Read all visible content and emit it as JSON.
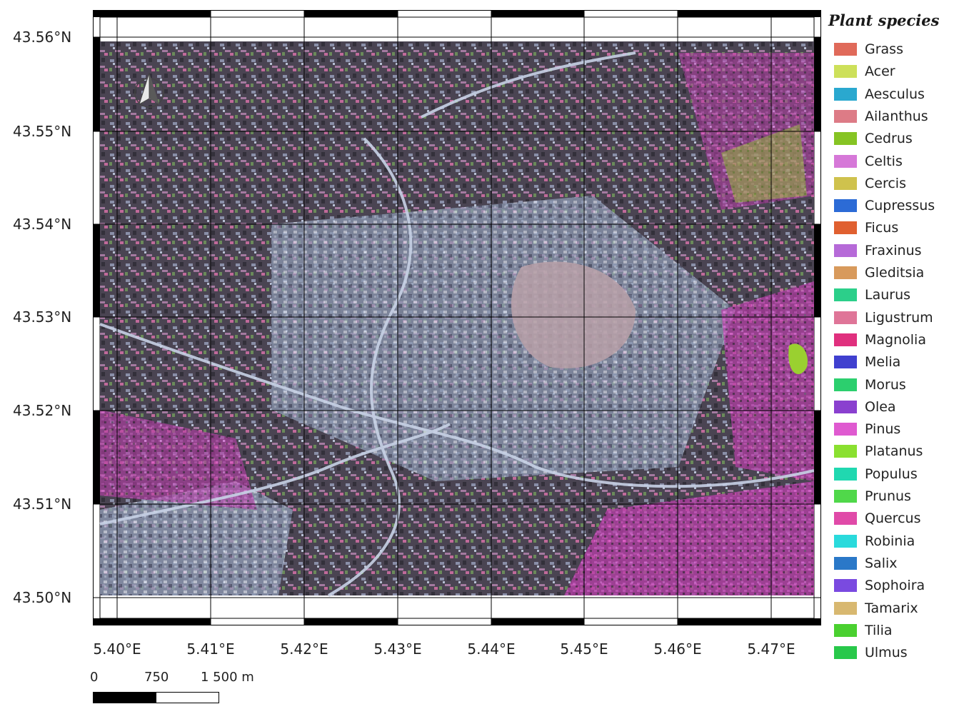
{
  "map": {
    "latitude_labels": [
      "43.56°N",
      "43.55°N",
      "43.54°N",
      "43.53°N",
      "43.52°N",
      "43.51°N",
      "43.50°N"
    ],
    "longitude_labels": [
      "5.40°E",
      "5.41°E",
      "5.42°E",
      "5.43°E",
      "5.44°E",
      "5.45°E",
      "5.46°E",
      "5.47°E"
    ]
  },
  "legend": {
    "title": "Plant species",
    "items": [
      {
        "label": "Grass",
        "color": "#e06a5a"
      },
      {
        "label": "Acer",
        "color": "#cde05a"
      },
      {
        "label": "Aesculus",
        "color": "#2aa8cf"
      },
      {
        "label": "Ailanthus",
        "color": "#dd7b86"
      },
      {
        "label": "Cedrus",
        "color": "#86c424"
      },
      {
        "label": "Celtis",
        "color": "#d678d8"
      },
      {
        "label": "Cercis",
        "color": "#cfc24d"
      },
      {
        "label": "Cupressus",
        "color": "#2c6bd6"
      },
      {
        "label": "Ficus",
        "color": "#e06030"
      },
      {
        "label": "Fraxinus",
        "color": "#b66ad8"
      },
      {
        "label": "Gleditsia",
        "color": "#d89a5c"
      },
      {
        "label": "Laurus",
        "color": "#2ccf8a"
      },
      {
        "label": "Ligustrum",
        "color": "#df7598"
      },
      {
        "label": "Magnolia",
        "color": "#e0307e"
      },
      {
        "label": "Melia",
        "color": "#4040cf"
      },
      {
        "label": "Morus",
        "color": "#2ccf6e"
      },
      {
        "label": "Olea",
        "color": "#8a40cf"
      },
      {
        "label": "Pinus",
        "color": "#df5ad0"
      },
      {
        "label": "Platanus",
        "color": "#8ae030"
      },
      {
        "label": "Populus",
        "color": "#20d8b0"
      },
      {
        "label": "Prunus",
        "color": "#50d84a"
      },
      {
        "label": "Quercus",
        "color": "#e04aa8"
      },
      {
        "label": "Robinia",
        "color": "#2adadc"
      },
      {
        "label": "Salix",
        "color": "#2a78c8"
      },
      {
        "label": "Sophoira",
        "color": "#7a4ae0"
      },
      {
        "label": "Tamarix",
        "color": "#d8b870"
      },
      {
        "label": "Tilia",
        "color": "#4ad030"
      },
      {
        "label": "Ulmus",
        "color": "#28c84a"
      }
    ]
  },
  "north_arrow": {
    "icon": "north-arrow-icon"
  },
  "scalebar": {
    "labels": [
      "0",
      "750",
      "1 500 m"
    ]
  }
}
